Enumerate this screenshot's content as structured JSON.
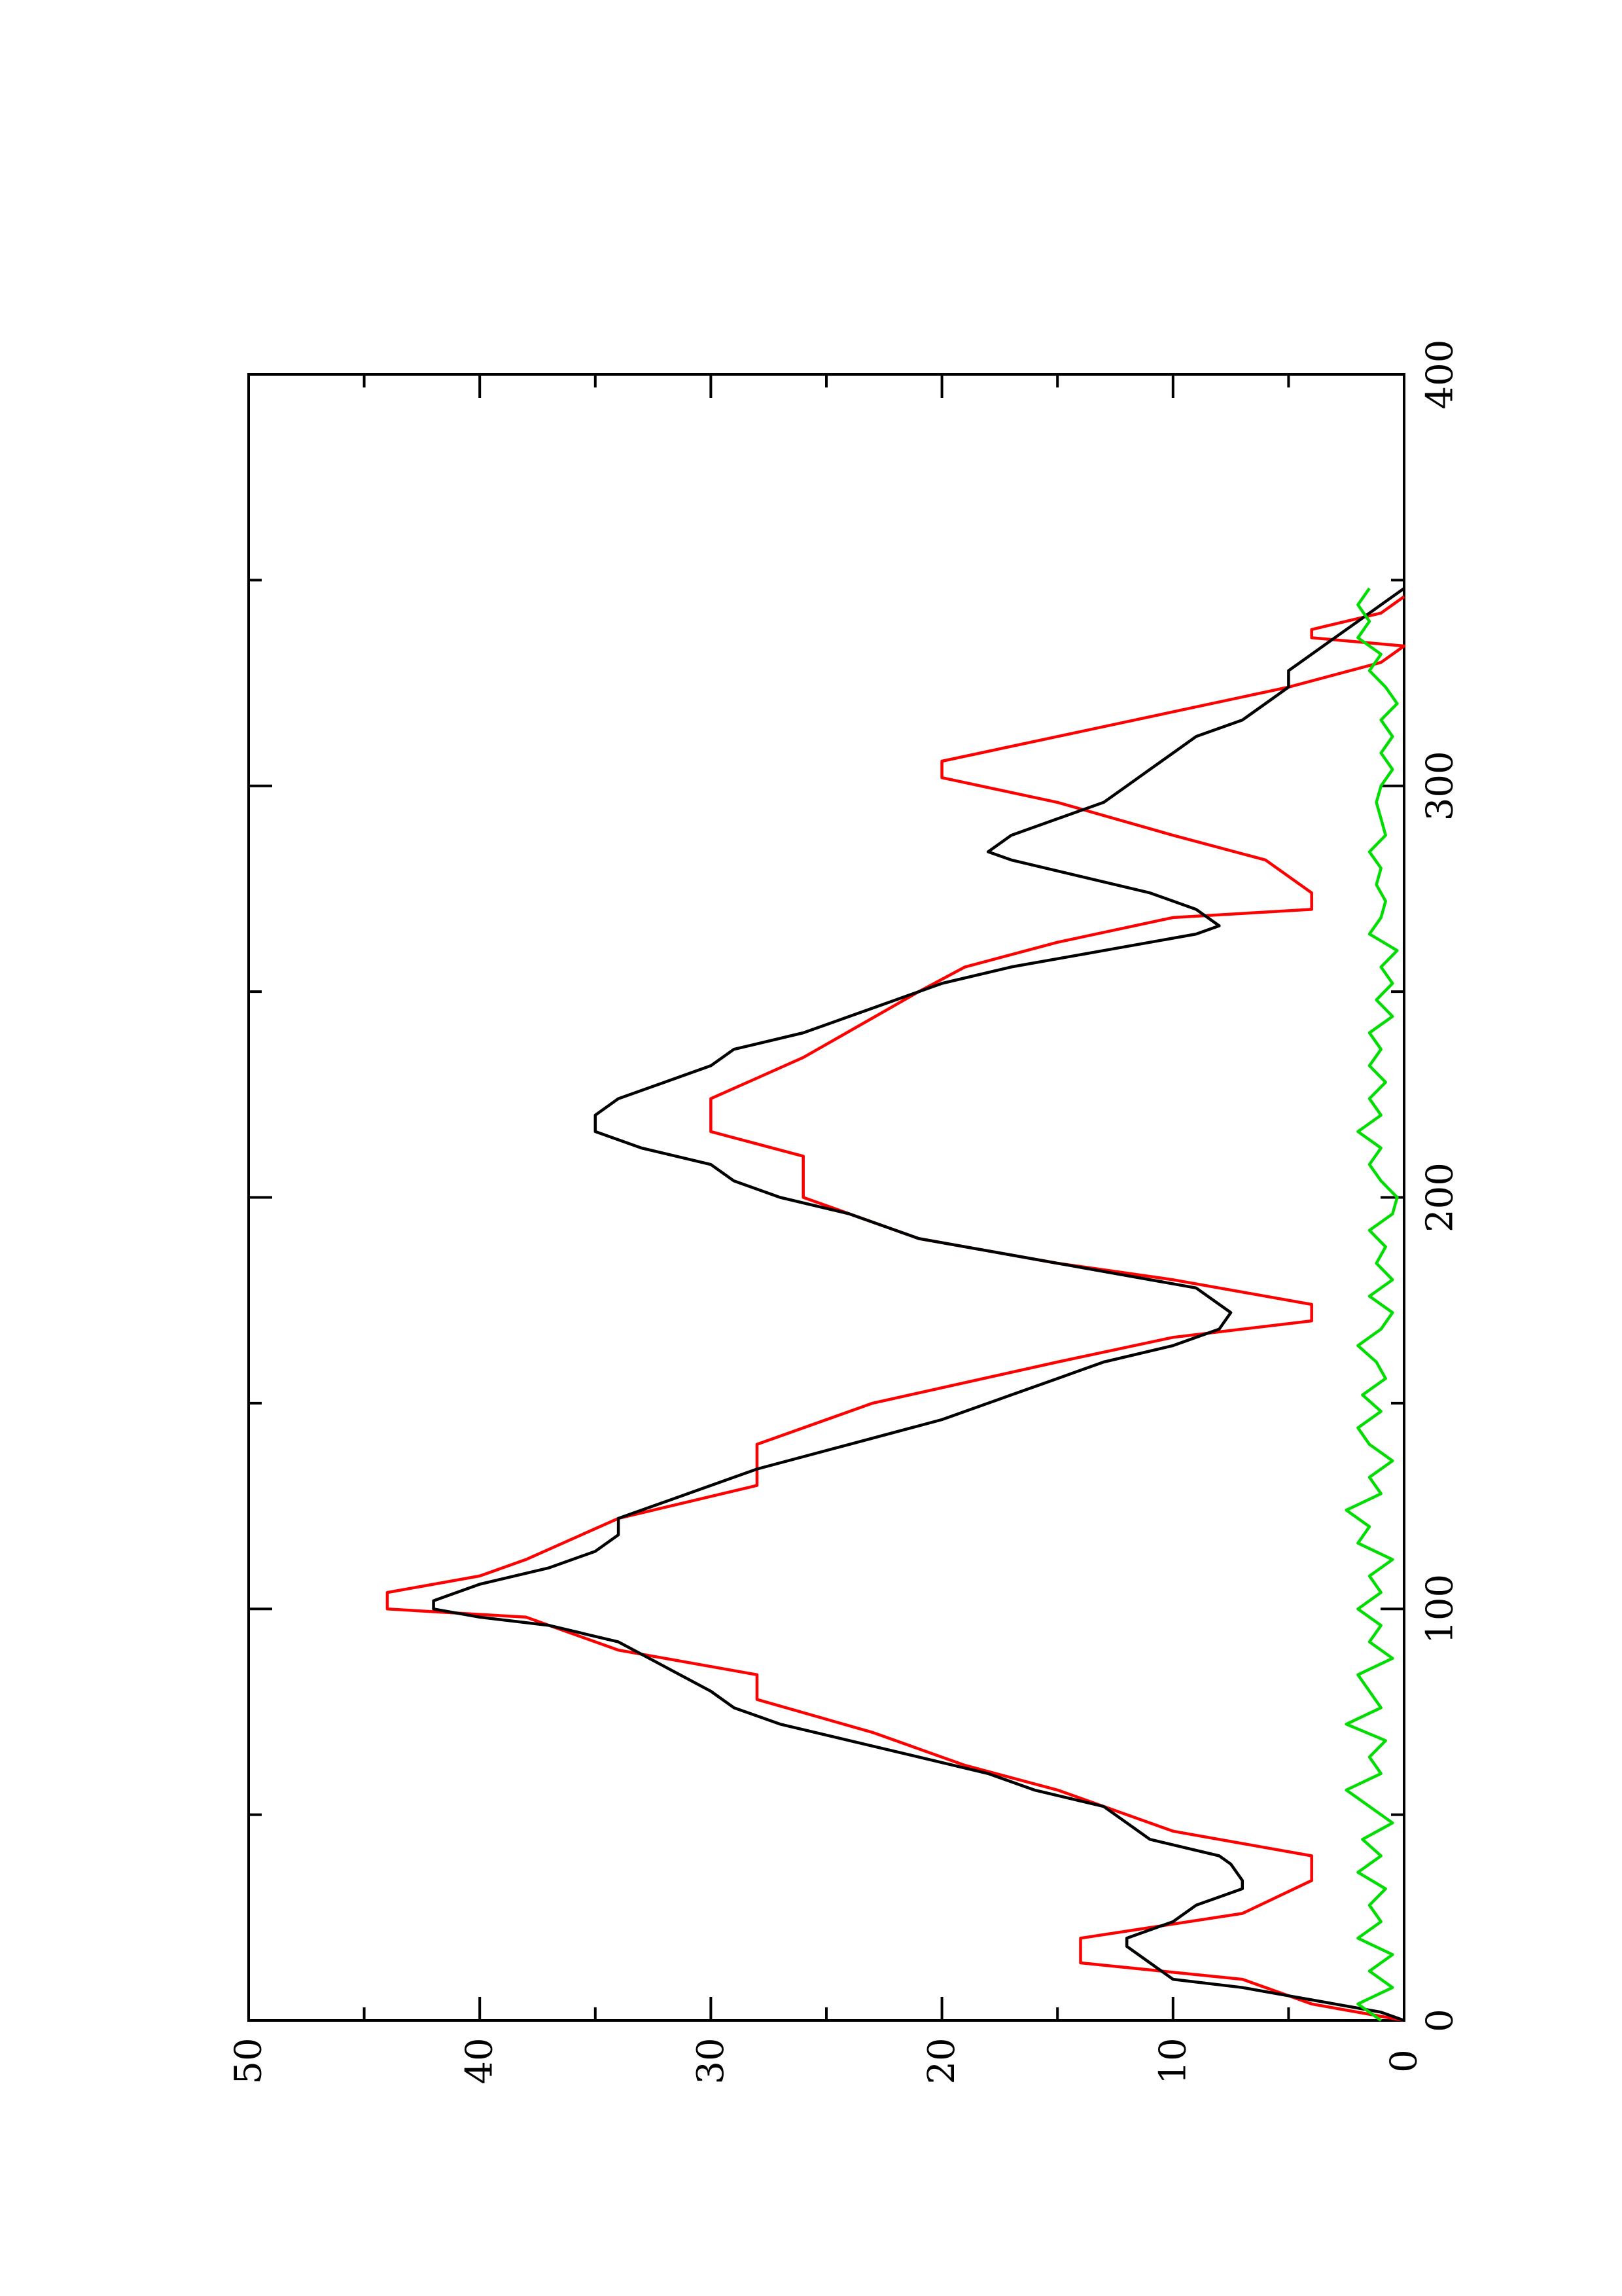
{
  "chart_data": {
    "type": "line",
    "orientation": "rotated-90-ccw",
    "title": "",
    "xlabel": "",
    "ylabel": "",
    "xlim": [
      0,
      400
    ],
    "ylim": [
      0,
      50
    ],
    "x_ticks": [
      0,
      100,
      200,
      300,
      400
    ],
    "y_ticks": [
      0,
      10,
      20,
      30,
      40,
      50
    ],
    "grid": false,
    "legend": "none",
    "series": [
      {
        "color": "#ff0000",
        "style": "step",
        "points": [
          [
            0,
            0
          ],
          [
            4,
            4
          ],
          [
            10,
            7
          ],
          [
            14,
            14
          ],
          [
            20,
            14
          ],
          [
            26,
            7
          ],
          [
            34,
            4
          ],
          [
            40,
            4
          ],
          [
            46,
            10
          ],
          [
            56,
            15
          ],
          [
            62,
            19
          ],
          [
            70,
            23
          ],
          [
            78,
            28
          ],
          [
            84,
            28
          ],
          [
            90,
            34
          ],
          [
            98,
            38
          ],
          [
            100,
            44
          ],
          [
            104,
            44
          ],
          [
            108,
            40
          ],
          [
            112,
            38
          ],
          [
            122,
            34
          ],
          [
            130,
            28
          ],
          [
            140,
            28
          ],
          [
            150,
            23
          ],
          [
            160,
            15
          ],
          [
            166,
            10
          ],
          [
            170,
            4
          ],
          [
            174,
            4
          ],
          [
            180,
            10
          ],
          [
            184,
            15
          ],
          [
            190,
            21
          ],
          [
            200,
            26
          ],
          [
            210,
            26
          ],
          [
            216,
            30
          ],
          [
            224,
            30
          ],
          [
            234,
            26
          ],
          [
            250,
            21
          ],
          [
            256,
            19
          ],
          [
            262,
            15
          ],
          [
            268,
            10
          ],
          [
            270,
            4
          ],
          [
            274,
            4
          ],
          [
            282,
            6
          ],
          [
            288,
            10
          ],
          [
            296,
            15
          ],
          [
            302,
            20
          ],
          [
            306,
            20
          ],
          [
            312,
            15
          ],
          [
            318,
            10
          ],
          [
            324,
            5
          ],
          [
            330,
            1
          ],
          [
            334,
            0
          ],
          [
            336,
            4
          ],
          [
            338,
            4
          ],
          [
            342,
            1
          ],
          [
            346,
            0
          ]
        ]
      },
      {
        "color": "#000000",
        "style": "line",
        "points": [
          [
            0,
            0
          ],
          [
            2,
            1
          ],
          [
            4,
            3
          ],
          [
            6,
            5
          ],
          [
            8,
            7
          ],
          [
            10,
            10
          ],
          [
            14,
            11
          ],
          [
            18,
            12
          ],
          [
            20,
            12
          ],
          [
            24,
            10
          ],
          [
            28,
            9
          ],
          [
            30,
            8
          ],
          [
            32,
            7
          ],
          [
            34,
            7
          ],
          [
            38,
            7.5
          ],
          [
            40,
            8
          ],
          [
            44,
            11
          ],
          [
            48,
            12
          ],
          [
            52,
            13
          ],
          [
            56,
            16
          ],
          [
            60,
            18
          ],
          [
            64,
            21
          ],
          [
            68,
            24
          ],
          [
            72,
            27
          ],
          [
            76,
            29
          ],
          [
            80,
            30
          ],
          [
            86,
            32
          ],
          [
            92,
            34
          ],
          [
            96,
            37
          ],
          [
            98,
            40
          ],
          [
            100,
            42
          ],
          [
            102,
            42
          ],
          [
            106,
            40
          ],
          [
            110,
            37
          ],
          [
            114,
            35
          ],
          [
            118,
            34
          ],
          [
            122,
            34
          ],
          [
            126,
            32
          ],
          [
            130,
            30
          ],
          [
            134,
            28
          ],
          [
            140,
            24
          ],
          [
            146,
            20
          ],
          [
            152,
            17
          ],
          [
            156,
            15
          ],
          [
            160,
            13
          ],
          [
            164,
            10
          ],
          [
            168,
            8
          ],
          [
            172,
            7.5
          ],
          [
            178,
            9
          ],
          [
            182,
            13
          ],
          [
            186,
            17
          ],
          [
            190,
            21
          ],
          [
            196,
            24
          ],
          [
            200,
            27
          ],
          [
            204,
            29
          ],
          [
            208,
            30
          ],
          [
            212,
            33
          ],
          [
            216,
            35
          ],
          [
            220,
            35
          ],
          [
            224,
            34
          ],
          [
            228,
            32
          ],
          [
            232,
            30
          ],
          [
            236,
            29
          ],
          [
            240,
            26
          ],
          [
            244,
            24
          ],
          [
            248,
            22
          ],
          [
            252,
            20
          ],
          [
            256,
            17
          ],
          [
            260,
            13
          ],
          [
            264,
            9
          ],
          [
            266,
            8
          ],
          [
            270,
            9
          ],
          [
            274,
            11
          ],
          [
            278,
            14
          ],
          [
            282,
            17
          ],
          [
            284,
            18
          ],
          [
            288,
            17
          ],
          [
            292,
            15
          ],
          [
            296,
            13
          ],
          [
            300,
            12
          ],
          [
            304,
            11
          ],
          [
            308,
            10
          ],
          [
            312,
            9
          ],
          [
            316,
            7
          ],
          [
            320,
            6
          ],
          [
            324,
            5
          ],
          [
            328,
            5
          ],
          [
            332,
            4
          ],
          [
            336,
            3
          ],
          [
            340,
            2
          ],
          [
            344,
            1
          ],
          [
            348,
            0
          ]
        ]
      },
      {
        "color": "#00dd00",
        "style": "line",
        "noisy": true,
        "points": [
          [
            0,
            1
          ],
          [
            4,
            2
          ],
          [
            8,
            0.5
          ],
          [
            12,
            1.5
          ],
          [
            16,
            0.5
          ],
          [
            20,
            2
          ],
          [
            24,
            1
          ],
          [
            28,
            1.5
          ],
          [
            32,
            0.8
          ],
          [
            36,
            2
          ],
          [
            40,
            1
          ],
          [
            44,
            1.8
          ],
          [
            48,
            0.5
          ],
          [
            52,
            1.5
          ],
          [
            56,
            2.5
          ],
          [
            60,
            1
          ],
          [
            64,
            1.5
          ],
          [
            68,
            0.8
          ],
          [
            72,
            2.5
          ],
          [
            76,
            1
          ],
          [
            80,
            1.5
          ],
          [
            84,
            2
          ],
          [
            88,
            0.5
          ],
          [
            92,
            1.5
          ],
          [
            96,
            1
          ],
          [
            100,
            2
          ],
          [
            104,
            1
          ],
          [
            108,
            1.5
          ],
          [
            112,
            0.5
          ],
          [
            116,
            2
          ],
          [
            120,
            1.5
          ],
          [
            124,
            2.5
          ],
          [
            128,
            1
          ],
          [
            132,
            1.5
          ],
          [
            136,
            0.5
          ],
          [
            140,
            1.5
          ],
          [
            144,
            2
          ],
          [
            148,
            1
          ],
          [
            152,
            1.8
          ],
          [
            156,
            0.8
          ],
          [
            160,
            1.2
          ],
          [
            164,
            2
          ],
          [
            168,
            1
          ],
          [
            172,
            0.5
          ],
          [
            176,
            1.5
          ],
          [
            180,
            0.5
          ],
          [
            184,
            1.2
          ],
          [
            188,
            0.8
          ],
          [
            192,
            1.5
          ],
          [
            196,
            0.5
          ],
          [
            200,
            0.3
          ],
          [
            204,
            1
          ],
          [
            208,
            1.5
          ],
          [
            212,
            1
          ],
          [
            216,
            2
          ],
          [
            220,
            1
          ],
          [
            224,
            1.5
          ],
          [
            228,
            0.8
          ],
          [
            232,
            1.5
          ],
          [
            236,
            1
          ],
          [
            240,
            1.5
          ],
          [
            244,
            0.5
          ],
          [
            248,
            1.2
          ],
          [
            252,
            0.5
          ],
          [
            256,
            1
          ],
          [
            260,
            0.3
          ],
          [
            264,
            1.5
          ],
          [
            268,
            1
          ],
          [
            272,
            0.8
          ],
          [
            276,
            1.2
          ],
          [
            280,
            1
          ],
          [
            284,
            1.5
          ],
          [
            288,
            0.8
          ],
          [
            292,
            1
          ],
          [
            296,
            1.2
          ],
          [
            300,
            1
          ],
          [
            304,
            0.5
          ],
          [
            308,
            1
          ],
          [
            312,
            0.5
          ],
          [
            316,
            1
          ],
          [
            320,
            0.3
          ],
          [
            324,
            0.8
          ],
          [
            328,
            1.5
          ],
          [
            332,
            1
          ],
          [
            336,
            2
          ],
          [
            340,
            1.5
          ],
          [
            344,
            2
          ],
          [
            348,
            1.5
          ]
        ]
      }
    ]
  }
}
